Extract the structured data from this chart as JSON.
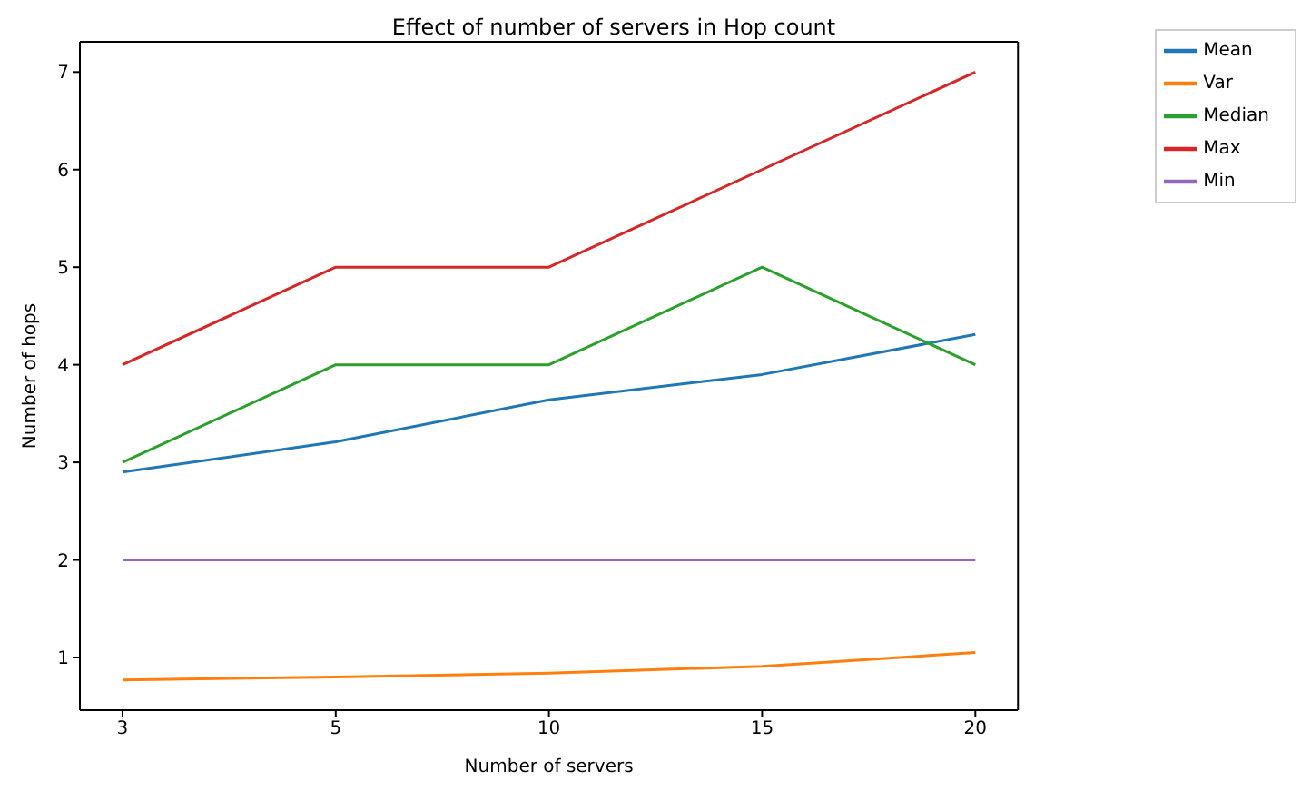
{
  "chart_data": {
    "type": "line",
    "title": "Effect of number of servers in Hop count",
    "xlabel": "Number of servers",
    "ylabel": "Number of hops",
    "categories": [
      "3",
      "5",
      "10",
      "15",
      "20"
    ],
    "series": [
      {
        "name": "Mean",
        "color": "#1f77b4",
        "values": [
          2.9,
          3.21,
          3.64,
          3.9,
          4.31
        ]
      },
      {
        "name": "Var",
        "color": "#ff7f0e",
        "values": [
          0.77,
          0.8,
          0.84,
          0.91,
          1.05
        ]
      },
      {
        "name": "Median",
        "color": "#2ca02c",
        "values": [
          3,
          4,
          4,
          5,
          4
        ]
      },
      {
        "name": "Max",
        "color": "#d62728",
        "values": [
          4,
          5,
          5,
          6,
          7
        ]
      },
      {
        "name": "Min",
        "color": "#9467bd",
        "values": [
          2,
          2,
          2,
          2,
          2
        ]
      }
    ],
    "ylim": [
      0.46,
      7.31
    ],
    "yticks": [
      1,
      2,
      3,
      4,
      5,
      6,
      7
    ],
    "legend": "top right",
    "marker": "none",
    "line_style": "solid"
  }
}
